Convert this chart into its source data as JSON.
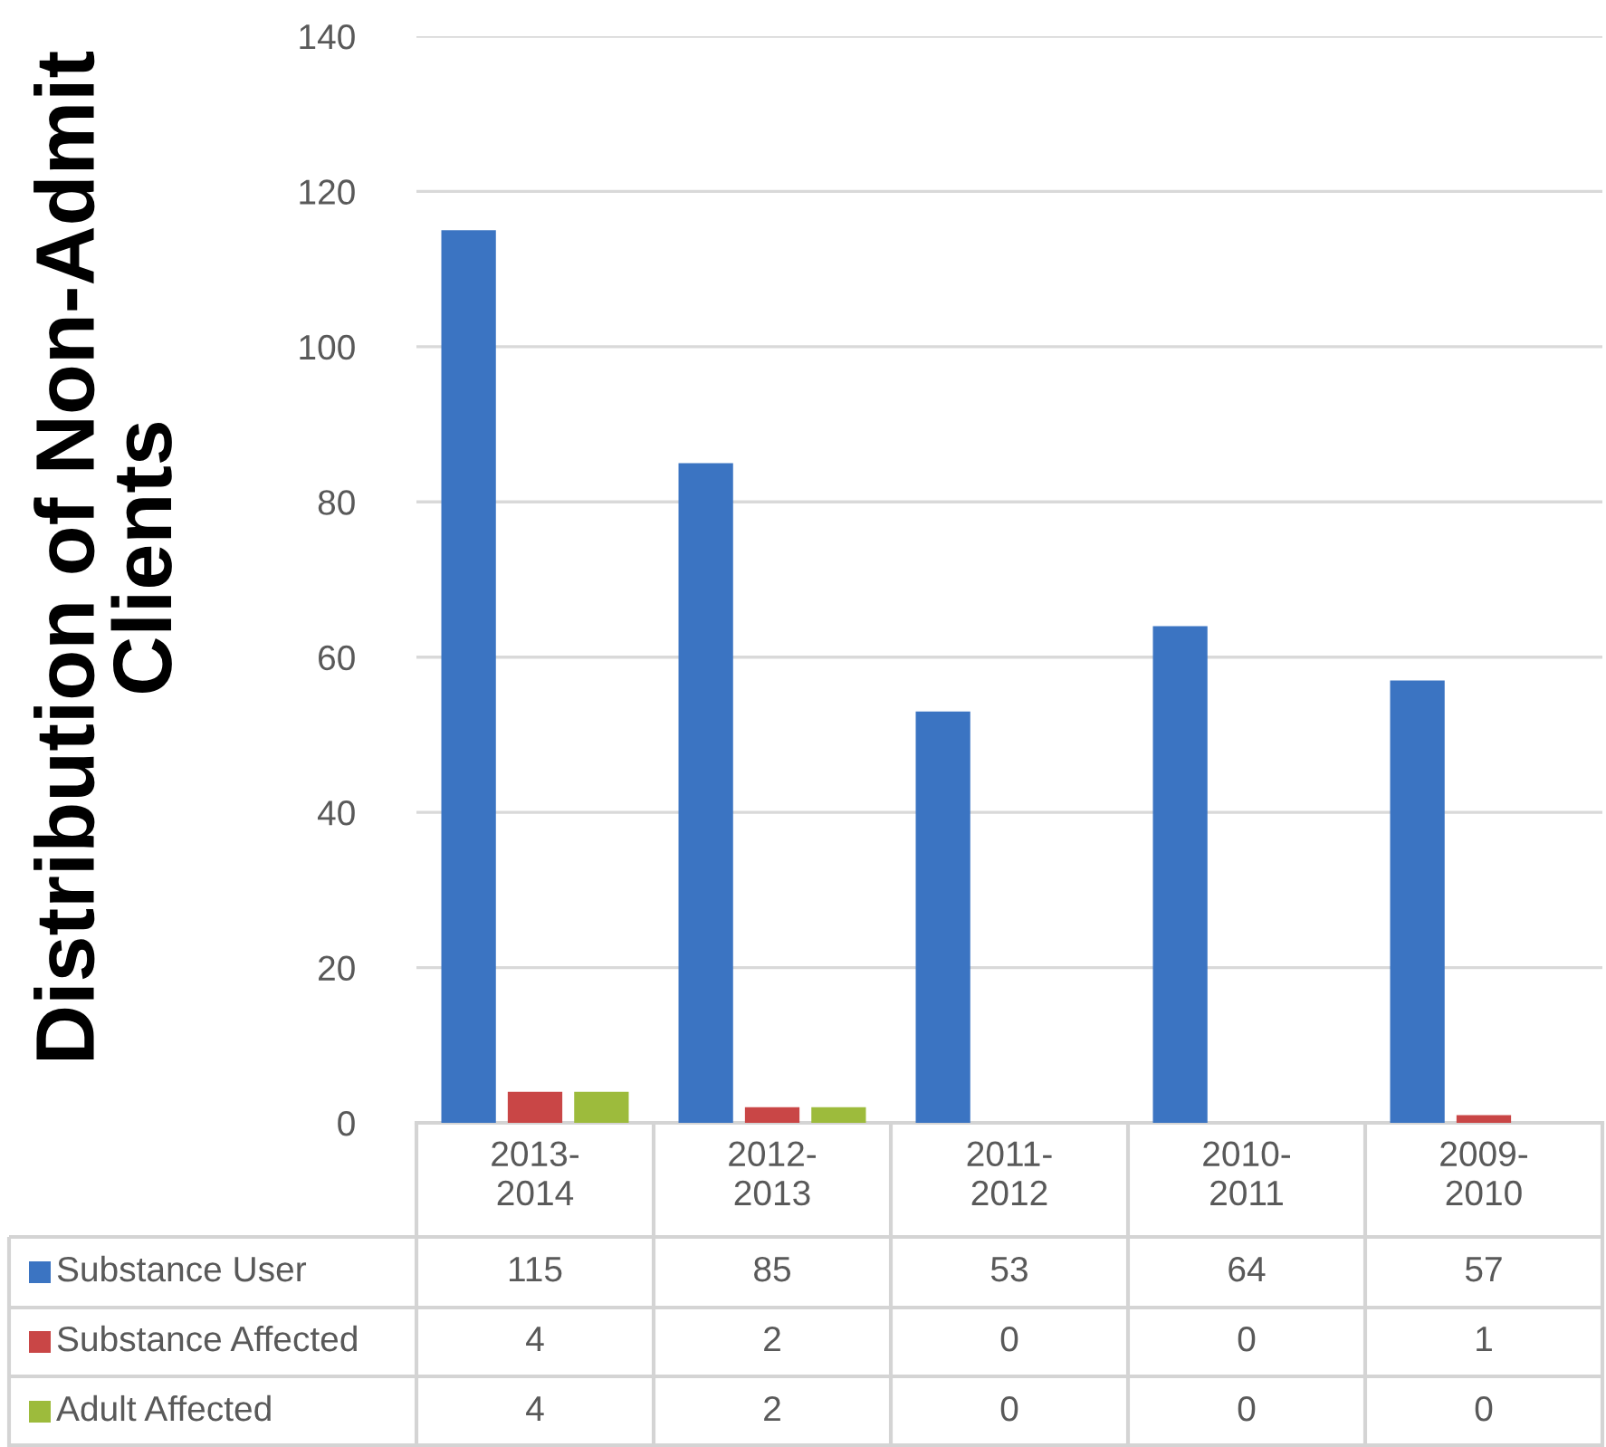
{
  "chart_data": {
    "type": "bar",
    "ylabel": "Distribution of Non-Admit\nClients",
    "categories": [
      "2013-\n2014",
      "2012-\n2013",
      "2011-\n2012",
      "2010-\n2011",
      "2009-\n2010"
    ],
    "series": [
      {
        "name": "Substance User",
        "color": "#3b74c2",
        "values": [
          115,
          85,
          53,
          64,
          57
        ]
      },
      {
        "name": "Substance Affected",
        "color": "#c94646",
        "values": [
          4,
          2,
          0,
          0,
          1
        ]
      },
      {
        "name": "Adult Affected",
        "color": "#9dbb3c",
        "values": [
          4,
          2,
          0,
          0,
          0
        ]
      }
    ],
    "ylim": [
      0,
      140
    ],
    "yticks": [
      0,
      20,
      40,
      60,
      80,
      100,
      120,
      140
    ],
    "grid": "y",
    "legend": "bottom",
    "data_labels": true
  }
}
